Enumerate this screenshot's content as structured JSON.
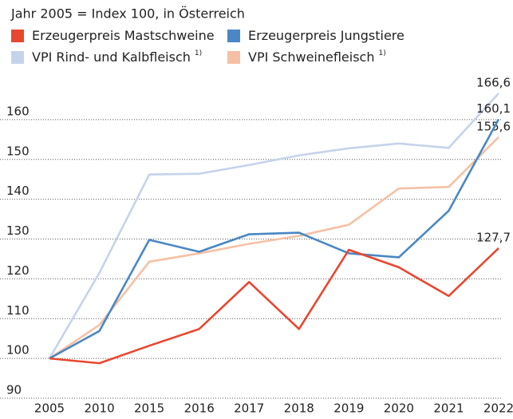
{
  "chart_data": {
    "type": "line",
    "title": "Jahr 2005 = Index 100, in Österreich",
    "categories": [
      "2005",
      "2010",
      "2015",
      "2016",
      "2017",
      "2018",
      "2019",
      "2020",
      "2021",
      "2022"
    ],
    "ylim": [
      90,
      170
    ],
    "yticks": [
      90,
      100,
      110,
      120,
      130,
      140,
      150,
      160
    ],
    "grid": true,
    "series": [
      {
        "name": "Erzeugerpreis Mastschweine",
        "color": "#e8472f",
        "values": [
          100,
          98.8,
          103.2,
          107.4,
          119.2,
          107.4,
          127.3,
          122.9,
          115.7,
          127.7
        ],
        "value_labels": [
          null,
          null,
          null,
          null,
          null,
          null,
          null,
          null,
          null,
          "127,7"
        ]
      },
      {
        "name": "Erzeugerpreis Jungstiere",
        "color": "#4a87c4",
        "values": [
          100,
          106.9,
          129.8,
          126.8,
          131.2,
          131.6,
          126.4,
          125.4,
          137.1,
          160.1
        ],
        "value_labels": [
          null,
          null,
          null,
          null,
          null,
          null,
          null,
          null,
          null,
          "160,1"
        ]
      },
      {
        "name": "VPI Rind- und Kalbfleisch",
        "note": "1)",
        "color": "#c5d3ea",
        "values": [
          100,
          121.5,
          146.2,
          146.4,
          148.6,
          151.0,
          152.8,
          154.0,
          152.9,
          166.6
        ],
        "value_labels": [
          null,
          null,
          null,
          null,
          null,
          null,
          null,
          null,
          null,
          "166,6"
        ]
      },
      {
        "name": "VPI Schweinefleisch",
        "note": "1)",
        "color": "#f6c0a5",
        "values": [
          100,
          108.4,
          124.3,
          126.4,
          128.8,
          130.8,
          133.6,
          142.7,
          143.1,
          155.6
        ],
        "value_labels": [
          null,
          null,
          null,
          null,
          null,
          null,
          null,
          null,
          null,
          "155,6"
        ]
      }
    ]
  }
}
